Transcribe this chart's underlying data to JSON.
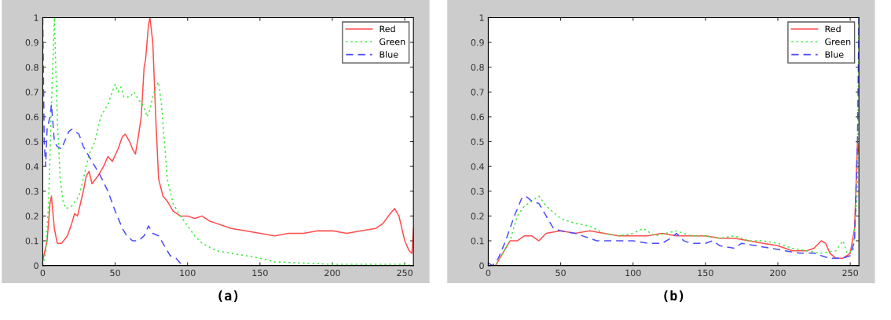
{
  "chart_data": [
    {
      "type": "line",
      "title": "(a)",
      "xlim": [
        0,
        256
      ],
      "ylim": [
        0,
        1
      ],
      "xticks": [
        0,
        50,
        100,
        150,
        200,
        250
      ],
      "yticks": [
        0,
        0.1,
        0.2,
        0.3,
        0.4,
        0.5,
        0.6,
        0.7,
        0.8,
        0.9,
        1
      ],
      "legend": "top right",
      "grid": false,
      "series": [
        {
          "name": "Red",
          "color": "#ff4d4d",
          "line_style": "solid",
          "x": [
            0,
            3,
            5,
            6,
            8,
            10,
            13,
            17,
            20,
            22,
            24,
            26,
            28,
            30,
            32,
            34,
            38,
            42,
            45,
            48,
            52,
            55,
            57,
            60,
            62,
            64,
            66,
            68,
            70,
            71,
            73,
            74,
            76,
            78,
            80,
            83,
            86,
            90,
            95,
            100,
            105,
            110,
            115,
            120,
            125,
            130,
            140,
            150,
            160,
            170,
            180,
            190,
            200,
            210,
            220,
            230,
            235,
            240,
            243,
            246,
            250,
            253,
            255,
            256
          ],
          "values": [
            0.02,
            0.1,
            0.25,
            0.28,
            0.15,
            0.09,
            0.09,
            0.12,
            0.17,
            0.21,
            0.2,
            0.25,
            0.3,
            0.36,
            0.38,
            0.33,
            0.36,
            0.4,
            0.44,
            0.42,
            0.47,
            0.52,
            0.53,
            0.5,
            0.47,
            0.45,
            0.52,
            0.6,
            0.8,
            0.83,
            0.97,
            1.0,
            0.9,
            0.6,
            0.35,
            0.28,
            0.26,
            0.22,
            0.2,
            0.2,
            0.19,
            0.2,
            0.18,
            0.17,
            0.16,
            0.15,
            0.14,
            0.13,
            0.12,
            0.13,
            0.13,
            0.14,
            0.14,
            0.13,
            0.14,
            0.15,
            0.17,
            0.21,
            0.23,
            0.2,
            0.1,
            0.06,
            0.05,
            0.15
          ]
        },
        {
          "name": "Green",
          "color": "#33ee33",
          "line_style": "dotted",
          "x": [
            0,
            2,
            4,
            6,
            8,
            10,
            12,
            14,
            16,
            20,
            25,
            28,
            32,
            36,
            40,
            45,
            48,
            50,
            52,
            54,
            56,
            60,
            63,
            66,
            70,
            72,
            74,
            76,
            78,
            80,
            82,
            84,
            86,
            90,
            95,
            100,
            105,
            110,
            120,
            130,
            140,
            150,
            160,
            180,
            200,
            250,
            256
          ],
          "values": [
            0,
            0.05,
            0.25,
            0.65,
            1.0,
            0.6,
            0.35,
            0.26,
            0.23,
            0.24,
            0.28,
            0.35,
            0.45,
            0.5,
            0.6,
            0.65,
            0.7,
            0.73,
            0.7,
            0.72,
            0.68,
            0.68,
            0.7,
            0.67,
            0.64,
            0.6,
            0.63,
            0.68,
            0.72,
            0.74,
            0.65,
            0.5,
            0.35,
            0.25,
            0.2,
            0.16,
            0.12,
            0.09,
            0.06,
            0.05,
            0.04,
            0.03,
            0.015,
            0.01,
            0.005,
            0.005,
            0
          ]
        },
        {
          "name": "Blue",
          "color": "#4d4dff",
          "line_style": "dashed",
          "x": [
            0,
            1,
            2,
            3,
            5,
            6,
            8,
            10,
            13,
            15,
            18,
            20,
            25,
            28,
            32,
            36,
            40,
            45,
            50,
            55,
            58,
            62,
            66,
            70,
            73,
            76,
            80,
            84,
            88,
            92,
            95,
            98,
            256
          ],
          "values": [
            1.0,
            0.5,
            0.4,
            0.55,
            0.6,
            0.65,
            0.5,
            0.48,
            0.47,
            0.5,
            0.54,
            0.55,
            0.53,
            0.48,
            0.44,
            0.4,
            0.36,
            0.3,
            0.22,
            0.15,
            0.12,
            0.1,
            0.1,
            0.12,
            0.16,
            0.13,
            0.12,
            0.08,
            0.04,
            0.03,
            0.01,
            0,
            0
          ]
        }
      ]
    },
    {
      "type": "line",
      "title": "(b)",
      "xlim": [
        0,
        256
      ],
      "ylim": [
        0,
        1
      ],
      "xticks": [
        0,
        50,
        100,
        150,
        200,
        250
      ],
      "yticks": [
        0,
        0.1,
        0.2,
        0.3,
        0.4,
        0.5,
        0.6,
        0.7,
        0.8,
        0.9,
        1
      ],
      "legend": "top right",
      "grid": false,
      "series": [
        {
          "name": "Red",
          "color": "#ff4d4d",
          "line_style": "solid",
          "x": [
            0,
            5,
            10,
            15,
            20,
            25,
            30,
            35,
            40,
            50,
            60,
            70,
            80,
            90,
            100,
            110,
            120,
            130,
            140,
            150,
            160,
            170,
            180,
            190,
            200,
            210,
            220,
            225,
            230,
            233,
            236,
            240,
            245,
            250,
            253,
            255,
            256
          ],
          "values": [
            0,
            0,
            0.05,
            0.1,
            0.1,
            0.12,
            0.12,
            0.1,
            0.13,
            0.14,
            0.13,
            0.14,
            0.13,
            0.12,
            0.12,
            0.12,
            0.13,
            0.12,
            0.12,
            0.12,
            0.11,
            0.11,
            0.1,
            0.09,
            0.08,
            0.06,
            0.06,
            0.07,
            0.1,
            0.09,
            0.05,
            0.03,
            0.03,
            0.05,
            0.15,
            0.5,
            0.45
          ]
        },
        {
          "name": "Green",
          "color": "#33ee33",
          "line_style": "dotted",
          "x": [
            0,
            5,
            10,
            15,
            20,
            25,
            30,
            35,
            40,
            50,
            60,
            70,
            80,
            90,
            100,
            107,
            115,
            130,
            140,
            150,
            160,
            170,
            180,
            190,
            200,
            210,
            220,
            230,
            240,
            245,
            248,
            252,
            255,
            256
          ],
          "values": [
            0,
            0,
            0.05,
            0.1,
            0.2,
            0.24,
            0.26,
            0.28,
            0.24,
            0.19,
            0.17,
            0.16,
            0.13,
            0.12,
            0.13,
            0.15,
            0.12,
            0.14,
            0.12,
            0.12,
            0.11,
            0.12,
            0.1,
            0.1,
            0.09,
            0.07,
            0.06,
            0.05,
            0.06,
            0.1,
            0.05,
            0.06,
            0.3,
            1.0
          ]
        },
        {
          "name": "Blue",
          "color": "#4d4dff",
          "line_style": "dashed",
          "x": [
            0,
            3,
            7,
            12,
            18,
            23,
            26,
            30,
            35,
            40,
            45,
            50,
            60,
            70,
            75,
            80,
            90,
            100,
            110,
            120,
            126,
            130,
            135,
            140,
            150,
            155,
            160,
            170,
            175,
            185,
            195,
            205,
            215,
            225,
            235,
            245,
            250,
            253,
            255,
            256
          ],
          "values": [
            0.01,
            0,
            0.03,
            0.1,
            0.2,
            0.27,
            0.28,
            0.26,
            0.25,
            0.2,
            0.15,
            0.14,
            0.13,
            0.11,
            0.1,
            0.1,
            0.1,
            0.1,
            0.09,
            0.09,
            0.11,
            0.13,
            0.1,
            0.09,
            0.09,
            0.1,
            0.08,
            0.07,
            0.09,
            0.08,
            0.07,
            0.06,
            0.05,
            0.05,
            0.03,
            0.03,
            0.04,
            0.1,
            0.5,
            1.0
          ]
        }
      ]
    }
  ]
}
